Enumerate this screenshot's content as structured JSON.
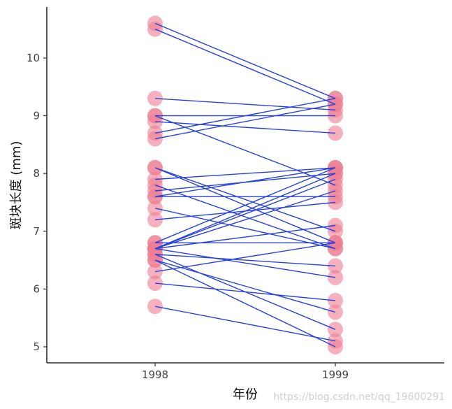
{
  "chart_data": {
    "type": "scatter",
    "subtype": "paired-slope",
    "title": "",
    "xlabel": "年份",
    "ylabel": "斑块长度 (mm)",
    "categories": [
      "1998",
      "1999"
    ],
    "yticks": [
      "5",
      "6",
      "7",
      "8",
      "9",
      "10"
    ],
    "ylim": [
      4.75,
      10.9
    ],
    "grid": false,
    "legend": "none",
    "colors": {
      "point": "#ee7d93",
      "line": "#2741e0"
    },
    "pairs": [
      {
        "y1998": 10.6,
        "y1999": 9.3
      },
      {
        "y1998": 10.5,
        "y1999": 9.2
      },
      {
        "y1998": 9.3,
        "y1999": 9.1
      },
      {
        "y1998": 9.0,
        "y1999": 9.0
      },
      {
        "y1998": 9.0,
        "y1999": 7.8
      },
      {
        "y1998": 8.9,
        "y1999": 8.7
      },
      {
        "y1998": 8.7,
        "y1999": 9.3
      },
      {
        "y1998": 8.6,
        "y1999": 9.2
      },
      {
        "y1998": 8.1,
        "y1999": 7.0
      },
      {
        "y1998": 8.1,
        "y1999": 6.8
      },
      {
        "y1998": 7.9,
        "y1999": 8.1
      },
      {
        "y1998": 7.8,
        "y1999": 6.7
      },
      {
        "y1998": 7.7,
        "y1999": 8.0
      },
      {
        "y1998": 7.6,
        "y1999": 7.6
      },
      {
        "y1998": 7.6,
        "y1999": 8.1
      },
      {
        "y1998": 7.4,
        "y1999": 6.7
      },
      {
        "y1998": 7.2,
        "y1999": 7.5
      },
      {
        "y1998": 6.8,
        "y1999": 8.1
      },
      {
        "y1998": 6.8,
        "y1999": 6.8
      },
      {
        "y1998": 6.7,
        "y1999": 7.9
      },
      {
        "y1998": 6.7,
        "y1999": 7.7
      },
      {
        "y1998": 6.7,
        "y1999": 7.1
      },
      {
        "y1998": 6.7,
        "y1999": 8.0
      },
      {
        "y1998": 6.6,
        "y1999": 6.4
      },
      {
        "y1998": 6.5,
        "y1999": 5.0
      },
      {
        "y1998": 6.5,
        "y1999": 5.6
      },
      {
        "y1998": 6.3,
        "y1999": 6.8
      },
      {
        "y1998": 6.1,
        "y1999": 5.8
      },
      {
        "y1998": 5.7,
        "y1999": 5.1
      },
      {
        "y1998": 6.7,
        "y1999": 6.2
      },
      {
        "y1998": 6.6,
        "y1999": 5.3
      }
    ]
  },
  "watermark": "https://blog.csdn.net/qq_19600291"
}
